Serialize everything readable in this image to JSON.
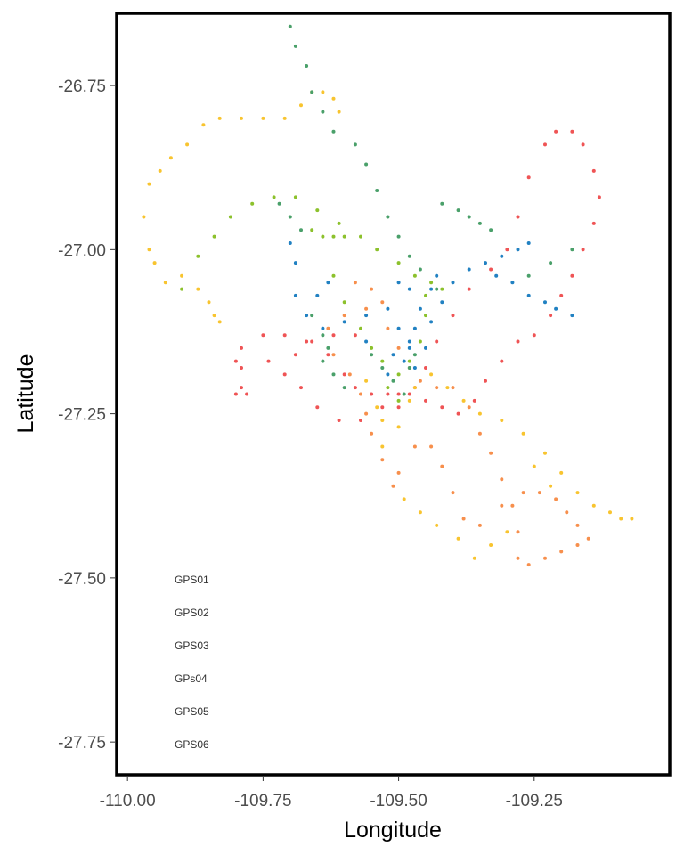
{
  "chart_data": {
    "type": "scatter",
    "xlabel": "Longitude",
    "ylabel": "Latitude",
    "xlim": [
      -110.02,
      -109.0
    ],
    "ylim": [
      -27.8,
      -26.64
    ],
    "x_ticks": [
      -110.0,
      -109.75,
      -109.5,
      -109.25
    ],
    "x_tick_labels": [
      "-110.00",
      "-109.75",
      "-109.50",
      "-109.25"
    ],
    "y_ticks": [
      -26.75,
      -27.0,
      -27.25,
      -27.5,
      -27.75
    ],
    "y_tick_labels": [
      "-26.75",
      "-27.00",
      "-27.25",
      "-27.50",
      "-27.75"
    ],
    "grid": false,
    "legend_position": "bottom-left inside",
    "series": [
      {
        "name": "GPS01",
        "color": "#ef5455",
        "points": [
          [
            -109.8,
            -27.22
          ],
          [
            -109.79,
            -27.21
          ],
          [
            -109.78,
            -27.22
          ],
          [
            -109.79,
            -27.18
          ],
          [
            -109.8,
            -27.17
          ],
          [
            -109.79,
            -27.15
          ],
          [
            -109.75,
            -27.13
          ],
          [
            -109.71,
            -27.13
          ],
          [
            -109.67,
            -27.14
          ],
          [
            -109.63,
            -27.16
          ],
          [
            -109.6,
            -27.19
          ],
          [
            -109.58,
            -27.21
          ],
          [
            -109.55,
            -27.22
          ],
          [
            -109.52,
            -27.22
          ],
          [
            -109.5,
            -27.22
          ],
          [
            -109.47,
            -27.21
          ],
          [
            -109.45,
            -27.18
          ],
          [
            -109.43,
            -27.14
          ],
          [
            -109.4,
            -27.1
          ],
          [
            -109.37,
            -27.06
          ],
          [
            -109.33,
            -27.03
          ],
          [
            -109.3,
            -27.0
          ],
          [
            -109.28,
            -26.95
          ],
          [
            -109.26,
            -26.89
          ],
          [
            -109.23,
            -26.84
          ],
          [
            -109.21,
            -26.82
          ],
          [
            -109.18,
            -26.82
          ],
          [
            -109.16,
            -26.84
          ],
          [
            -109.14,
            -26.88
          ],
          [
            -109.13,
            -26.92
          ],
          [
            -109.14,
            -26.96
          ],
          [
            -109.16,
            -27.0
          ],
          [
            -109.18,
            -27.04
          ],
          [
            -109.2,
            -27.07
          ],
          [
            -109.22,
            -27.1
          ],
          [
            -109.25,
            -27.13
          ],
          [
            -109.28,
            -27.14
          ],
          [
            -109.31,
            -27.17
          ],
          [
            -109.34,
            -27.2
          ],
          [
            -109.36,
            -27.23
          ],
          [
            -109.39,
            -27.25
          ],
          [
            -109.42,
            -27.24
          ],
          [
            -109.45,
            -27.23
          ],
          [
            -109.48,
            -27.22
          ],
          [
            -109.5,
            -27.24
          ],
          [
            -109.53,
            -27.24
          ],
          [
            -109.57,
            -27.26
          ],
          [
            -109.61,
            -27.26
          ],
          [
            -109.65,
            -27.24
          ],
          [
            -109.68,
            -27.21
          ],
          [
            -109.71,
            -27.19
          ],
          [
            -109.74,
            -27.17
          ],
          [
            -109.69,
            -27.16
          ],
          [
            -109.66,
            -27.14
          ],
          [
            -109.62,
            -27.13
          ],
          [
            -109.58,
            -27.13
          ]
        ]
      },
      {
        "name": "GPS02",
        "color": "#f78f4c",
        "points": [
          [
            -109.58,
            -27.05
          ],
          [
            -109.55,
            -27.06
          ],
          [
            -109.53,
            -27.08
          ],
          [
            -109.52,
            -27.12
          ],
          [
            -109.5,
            -27.15
          ],
          [
            -109.48,
            -27.18
          ],
          [
            -109.46,
            -27.2
          ],
          [
            -109.43,
            -27.21
          ],
          [
            -109.4,
            -27.21
          ],
          [
            -109.37,
            -27.24
          ],
          [
            -109.35,
            -27.28
          ],
          [
            -109.33,
            -27.31
          ],
          [
            -109.31,
            -27.35
          ],
          [
            -109.29,
            -27.39
          ],
          [
            -109.28,
            -27.43
          ],
          [
            -109.28,
            -27.47
          ],
          [
            -109.26,
            -27.48
          ],
          [
            -109.23,
            -27.47
          ],
          [
            -109.2,
            -27.46
          ],
          [
            -109.17,
            -27.45
          ],
          [
            -109.15,
            -27.44
          ],
          [
            -109.17,
            -27.42
          ],
          [
            -109.19,
            -27.4
          ],
          [
            -109.21,
            -27.38
          ],
          [
            -109.24,
            -27.37
          ],
          [
            -109.27,
            -27.37
          ],
          [
            -109.31,
            -27.39
          ],
          [
            -109.35,
            -27.42
          ],
          [
            -109.38,
            -27.41
          ],
          [
            -109.4,
            -27.37
          ],
          [
            -109.42,
            -27.33
          ],
          [
            -109.44,
            -27.3
          ],
          [
            -109.47,
            -27.3
          ],
          [
            -109.5,
            -27.34
          ],
          [
            -109.51,
            -27.36
          ],
          [
            -109.53,
            -27.32
          ],
          [
            -109.55,
            -27.28
          ],
          [
            -109.56,
            -27.25
          ],
          [
            -109.57,
            -27.22
          ],
          [
            -109.59,
            -27.19
          ],
          [
            -109.62,
            -27.16
          ],
          [
            -109.63,
            -27.12
          ],
          [
            -109.6,
            -27.1
          ],
          [
            -109.56,
            -27.09
          ]
        ]
      },
      {
        "name": "GPS03",
        "color": "#f8c42f",
        "points": [
          [
            -109.95,
            -27.02
          ],
          [
            -109.96,
            -27.0
          ],
          [
            -109.97,
            -26.95
          ],
          [
            -109.96,
            -26.9
          ],
          [
            -109.94,
            -26.88
          ],
          [
            -109.92,
            -26.86
          ],
          [
            -109.89,
            -26.84
          ],
          [
            -109.86,
            -26.81
          ],
          [
            -109.83,
            -26.8
          ],
          [
            -109.79,
            -26.8
          ],
          [
            -109.75,
            -26.8
          ],
          [
            -109.71,
            -26.8
          ],
          [
            -109.68,
            -26.78
          ],
          [
            -109.66,
            -26.76
          ],
          [
            -109.64,
            -26.76
          ],
          [
            -109.62,
            -26.77
          ],
          [
            -109.61,
            -26.79
          ],
          [
            -109.93,
            -27.05
          ],
          [
            -109.9,
            -27.04
          ],
          [
            -109.87,
            -27.06
          ],
          [
            -109.85,
            -27.08
          ],
          [
            -109.84,
            -27.1
          ],
          [
            -109.83,
            -27.11
          ],
          [
            -109.56,
            -27.2
          ],
          [
            -109.54,
            -27.24
          ],
          [
            -109.53,
            -27.26
          ],
          [
            -109.53,
            -27.3
          ],
          [
            -109.5,
            -27.27
          ],
          [
            -109.48,
            -27.23
          ],
          [
            -109.47,
            -27.21
          ],
          [
            -109.44,
            -27.19
          ],
          [
            -109.41,
            -27.21
          ],
          [
            -109.38,
            -27.23
          ],
          [
            -109.35,
            -27.25
          ],
          [
            -109.31,
            -27.26
          ],
          [
            -109.27,
            -27.28
          ],
          [
            -109.23,
            -27.31
          ],
          [
            -109.2,
            -27.34
          ],
          [
            -109.17,
            -27.37
          ],
          [
            -109.14,
            -27.39
          ],
          [
            -109.11,
            -27.4
          ],
          [
            -109.09,
            -27.41
          ],
          [
            -109.07,
            -27.41
          ],
          [
            -109.25,
            -27.33
          ],
          [
            -109.22,
            -27.36
          ],
          [
            -109.3,
            -27.43
          ],
          [
            -109.33,
            -27.45
          ],
          [
            -109.36,
            -27.47
          ],
          [
            -109.39,
            -27.44
          ],
          [
            -109.43,
            -27.42
          ],
          [
            -109.46,
            -27.4
          ],
          [
            -109.49,
            -27.38
          ]
        ]
      },
      {
        "name": "GPs04",
        "color": "#8cc12c",
        "points": [
          [
            -109.9,
            -27.06
          ],
          [
            -109.87,
            -27.01
          ],
          [
            -109.84,
            -26.98
          ],
          [
            -109.81,
            -26.95
          ],
          [
            -109.77,
            -26.93
          ],
          [
            -109.73,
            -26.92
          ],
          [
            -109.69,
            -26.92
          ],
          [
            -109.65,
            -26.94
          ],
          [
            -109.61,
            -26.96
          ],
          [
            -109.57,
            -26.98
          ],
          [
            -109.54,
            -27.0
          ],
          [
            -109.5,
            -27.02
          ],
          [
            -109.47,
            -27.04
          ],
          [
            -109.44,
            -27.05
          ],
          [
            -109.42,
            -27.06
          ],
          [
            -109.66,
            -26.97
          ],
          [
            -109.64,
            -26.98
          ],
          [
            -109.62,
            -26.98
          ],
          [
            -109.6,
            -26.98
          ],
          [
            -109.62,
            -27.04
          ],
          [
            -109.6,
            -27.08
          ],
          [
            -109.57,
            -27.12
          ],
          [
            -109.55,
            -27.15
          ],
          [
            -109.53,
            -27.17
          ],
          [
            -109.5,
            -27.19
          ],
          [
            -109.48,
            -27.17
          ],
          [
            -109.46,
            -27.14
          ],
          [
            -109.45,
            -27.1
          ],
          [
            -109.45,
            -27.07
          ],
          [
            -109.5,
            -27.23
          ],
          [
            -109.52,
            -27.21
          ]
        ]
      },
      {
        "name": "GPS05",
        "color": "#4aa06a",
        "points": [
          [
            -109.7,
            -26.66
          ],
          [
            -109.69,
            -26.69
          ],
          [
            -109.67,
            -26.72
          ],
          [
            -109.66,
            -26.76
          ],
          [
            -109.64,
            -26.79
          ],
          [
            -109.62,
            -26.82
          ],
          [
            -109.58,
            -26.84
          ],
          [
            -109.56,
            -26.87
          ],
          [
            -109.54,
            -26.91
          ],
          [
            -109.52,
            -26.95
          ],
          [
            -109.5,
            -26.98
          ],
          [
            -109.48,
            -27.01
          ],
          [
            -109.46,
            -27.03
          ],
          [
            -109.43,
            -27.06
          ],
          [
            -109.42,
            -26.93
          ],
          [
            -109.39,
            -26.94
          ],
          [
            -109.37,
            -26.95
          ],
          [
            -109.35,
            -26.96
          ],
          [
            -109.33,
            -26.97
          ],
          [
            -109.72,
            -26.93
          ],
          [
            -109.7,
            -26.95
          ],
          [
            -109.68,
            -26.97
          ],
          [
            -109.66,
            -27.1
          ],
          [
            -109.64,
            -27.13
          ],
          [
            -109.63,
            -27.15
          ],
          [
            -109.64,
            -27.17
          ],
          [
            -109.62,
            -27.19
          ],
          [
            -109.6,
            -27.21
          ],
          [
            -109.55,
            -27.16
          ],
          [
            -109.53,
            -27.18
          ],
          [
            -109.51,
            -27.2
          ],
          [
            -109.49,
            -27.22
          ],
          [
            -109.48,
            -27.18
          ],
          [
            -109.47,
            -27.16
          ],
          [
            -109.18,
            -27.0
          ],
          [
            -109.22,
            -27.02
          ],
          [
            -109.26,
            -27.04
          ]
        ]
      },
      {
        "name": "GPS06",
        "color": "#2181c2",
        "points": [
          [
            -109.7,
            -26.99
          ],
          [
            -109.69,
            -27.02
          ],
          [
            -109.69,
            -27.07
          ],
          [
            -109.67,
            -27.1
          ],
          [
            -109.64,
            -27.12
          ],
          [
            -109.6,
            -27.11
          ],
          [
            -109.56,
            -27.1
          ],
          [
            -109.52,
            -27.09
          ],
          [
            -109.5,
            -27.12
          ],
          [
            -109.48,
            -27.15
          ],
          [
            -109.47,
            -27.18
          ],
          [
            -109.45,
            -27.15
          ],
          [
            -109.44,
            -27.11
          ],
          [
            -109.42,
            -27.08
          ],
          [
            -109.4,
            -27.05
          ],
          [
            -109.37,
            -27.03
          ],
          [
            -109.34,
            -27.02
          ],
          [
            -109.31,
            -27.01
          ],
          [
            -109.28,
            -27.0
          ],
          [
            -109.26,
            -26.99
          ],
          [
            -109.32,
            -27.04
          ],
          [
            -109.29,
            -27.05
          ],
          [
            -109.26,
            -27.07
          ],
          [
            -109.23,
            -27.08
          ],
          [
            -109.21,
            -27.09
          ],
          [
            -109.18,
            -27.1
          ],
          [
            -109.43,
            -27.04
          ],
          [
            -109.44,
            -27.06
          ],
          [
            -109.46,
            -27.09
          ],
          [
            -109.47,
            -27.12
          ],
          [
            -109.48,
            -27.14
          ],
          [
            -109.49,
            -27.17
          ],
          [
            -109.51,
            -27.16
          ],
          [
            -109.52,
            -27.19
          ],
          [
            -109.56,
            -27.14
          ],
          [
            -109.63,
            -27.05
          ],
          [
            -109.65,
            -27.07
          ],
          [
            -109.5,
            -27.05
          ],
          [
            -109.48,
            -27.06
          ]
        ]
      }
    ]
  }
}
